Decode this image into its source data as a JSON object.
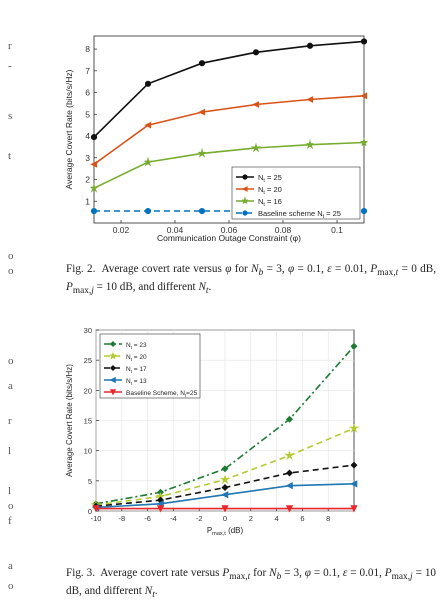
{
  "margin_fragments": [
    "r",
    "-",
    "s",
    "t",
    "o",
    "o",
    "o",
    "a",
    "r",
    "l",
    "l",
    "o",
    "f",
    "a",
    "o"
  ],
  "figure2": {
    "caption_html": "Fig. 2.&nbsp; Average covert rate versus <i>&phi;</i> for <i>N<sub>b</sub></i> = 3, <i>&phi;</i> = 0.1, <i>&epsilon;</i> = 0.01, <i>P</i><sub>max,<i>t</i></sub> = 0 dB, <i>P</i><sub>max,<i>j</i></sub> = 10 dB, and different <i>N<sub>t</sub></i>.",
    "chart_data": {
      "type": "line",
      "xlabel": "Communication Outage Constraint (φ)",
      "ylabel": "Average Covert Rate (bits/s/Hz)",
      "xlim": [
        0.01,
        0.11
      ],
      "ylim": [
        0,
        8.6
      ],
      "xticks": [
        0.02,
        0.04,
        0.06,
        0.08,
        0.1
      ],
      "xtick_labels": [
        "0.02",
        "0.04",
        "0.06",
        "0.08",
        "0.1"
      ],
      "yticks": [
        1,
        2,
        3,
        4,
        5,
        6,
        7,
        8
      ],
      "ytick_labels": [
        "1",
        "2",
        "3",
        "4",
        "5",
        "6",
        "7",
        "8"
      ],
      "x": [
        0.01,
        0.03,
        0.05,
        0.07,
        0.09,
        0.11
      ],
      "grid": false,
      "legend_position": "lower-right",
      "series": [
        {
          "name": "Nₜ = 25",
          "label_main": "N",
          "label_sub": "t",
          "label_rest": " = 25",
          "color": "#111111",
          "marker": "circle",
          "dash": "",
          "values": [
            3.95,
            6.4,
            7.35,
            7.85,
            8.15,
            8.35
          ]
        },
        {
          "name": "Nₜ = 20",
          "label_main": "N",
          "label_sub": "t",
          "label_rest": " = 20",
          "color": "#d95319",
          "marker": "triangle-left",
          "dash": "",
          "values": [
            2.7,
            4.5,
            5.1,
            5.45,
            5.68,
            5.85
          ]
        },
        {
          "name": "Nₜ = 16",
          "label_main": "N",
          "label_sub": "t",
          "label_rest": " = 16",
          "color": "#77ac30",
          "marker": "star",
          "dash": "",
          "values": [
            1.6,
            2.8,
            3.2,
            3.45,
            3.6,
            3.7
          ]
        },
        {
          "name": "Baseline scheme Nₜ = 25",
          "label_main": "Baseline scheme N",
          "label_sub": "t",
          "label_rest": " = 25",
          "color": "#0072bd",
          "marker": "circle",
          "dash": "6,4",
          "values": [
            0.55,
            0.55,
            0.55,
            0.55,
            0.55,
            0.55
          ]
        }
      ]
    }
  },
  "figure3": {
    "caption_html": "Fig. 3.&nbsp; Average covert rate versus <i>P</i><sub>max,<i>t</i></sub> for <i>N<sub>b</sub></i> = 3, <i>&phi;</i> = 0.1, <i>&epsilon;</i> = 0.01, <i>P</i><sub>max,<i>j</i></sub> = 10 dB, and different <i>N<sub>t</sub></i>.",
    "chart_data": {
      "type": "line",
      "xlabel": "P",
      "xlabel_sub": "max,t",
      "xlabel_rest": " (dB)",
      "ylabel": "Average Covert Rate (bits/s/Hz)",
      "xlim": [
        -10,
        10
      ],
      "ylim": [
        0,
        30
      ],
      "xticks": [
        -10,
        -8,
        -6,
        -4,
        -2,
        0,
        2,
        4,
        6,
        8
      ],
      "xtick_labels": [
        "-10",
        "-8",
        "-6",
        "-4",
        "-2",
        "0",
        "2",
        "4",
        "6",
        "8"
      ],
      "yticks": [
        0,
        5,
        10,
        15,
        20,
        25,
        30
      ],
      "ytick_labels": [
        "0",
        "5",
        "10",
        "15",
        "20",
        "25",
        "30"
      ],
      "x": [
        -10,
        -5,
        0,
        5,
        10
      ],
      "grid": true,
      "legend_position": "top-left",
      "series": [
        {
          "name": "Nₜ = 23",
          "label_main": "N",
          "label_sub": "t",
          "label_rest": " = 23",
          "color": "#1e7b34",
          "marker": "diamond",
          "dash": "7,3,2,3",
          "values": [
            1.2,
            3.1,
            7.0,
            15.2,
            27.3
          ]
        },
        {
          "name": "Nₜ = 20",
          "label_main": "N",
          "label_sub": "t",
          "label_rest": " = 20",
          "color": "#b5c930",
          "marker": "star",
          "dash": "6,4",
          "values": [
            1.0,
            2.4,
            5.2,
            9.2,
            13.7
          ]
        },
        {
          "name": "Nₜ = 17",
          "label_main": "N",
          "label_sub": "t",
          "label_rest": " = 17",
          "color": "#111111",
          "marker": "diamond",
          "dash": "6,4",
          "values": [
            0.8,
            1.8,
            3.9,
            6.3,
            7.6
          ]
        },
        {
          "name": "Nₜ = 13",
          "label_main": "N",
          "label_sub": "t",
          "label_rest": " = 13",
          "color": "#1f77b4",
          "marker": "triangle-left",
          "dash": "",
          "values": [
            0.6,
            1.2,
            2.7,
            4.2,
            4.5
          ]
        },
        {
          "name": "Baseline Scheme, Nₜ=25",
          "label_main": "Baseline Scheme, N",
          "label_sub": "t",
          "label_rest": "=25",
          "color": "#e8262a",
          "marker": "triangle-down",
          "dash": "",
          "values": [
            0.4,
            0.4,
            0.4,
            0.4,
            0.4
          ]
        }
      ]
    }
  }
}
